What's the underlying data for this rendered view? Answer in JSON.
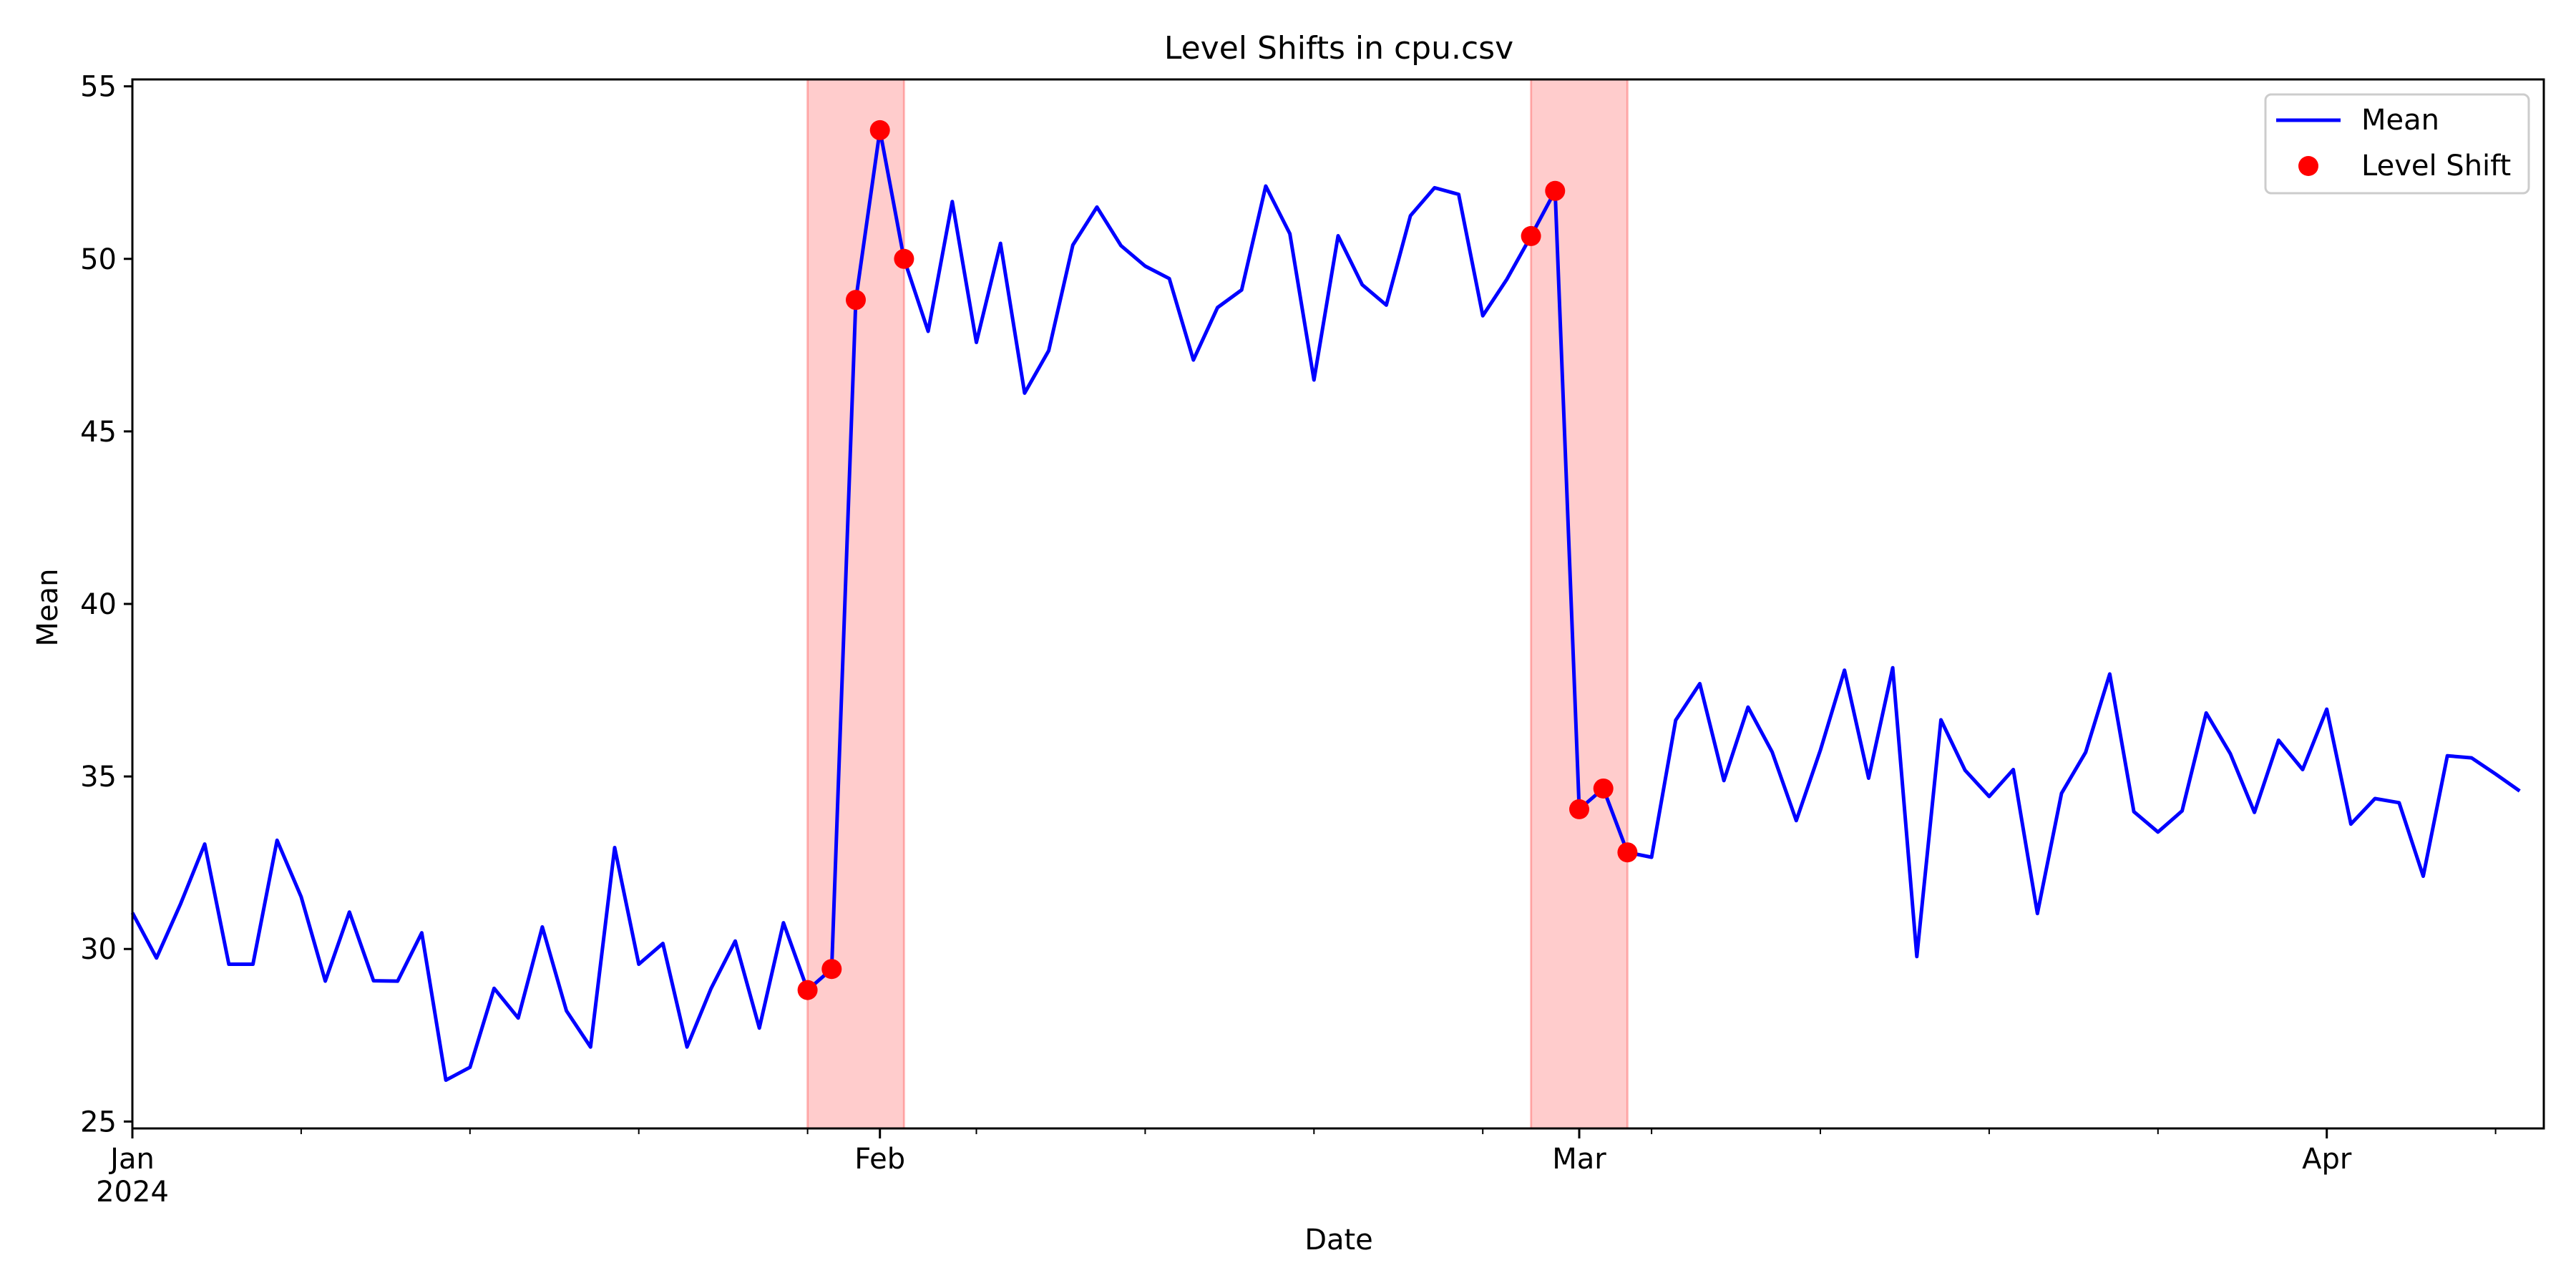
{
  "chart_data": {
    "type": "line",
    "title": "Level Shifts in cpu.csv",
    "xlabel": "Date",
    "ylabel": "Mean",
    "ylim": [
      24.8,
      55.2
    ],
    "yticks": [
      25,
      30,
      35,
      40,
      45,
      50,
      55
    ],
    "x_start": "2024-01-01",
    "x_end": "2024-04-10",
    "xlim": [
      "2024-01-01",
      "2024-04-10"
    ],
    "xticks": [
      {
        "date": "2024-01-01",
        "label": "Jan",
        "sublabel": "2024"
      },
      {
        "date": "2024-02-01",
        "label": "Feb",
        "sublabel": ""
      },
      {
        "date": "2024-03-01",
        "label": "Mar",
        "sublabel": ""
      },
      {
        "date": "2024-04-01",
        "label": "Apr",
        "sublabel": ""
      }
    ],
    "grid": false,
    "legend_position": "top-right",
    "shaded_spans": [
      {
        "start": "2024-01-29",
        "end": "2024-02-02",
        "color": "#ff0000"
      },
      {
        "start": "2024-02-28",
        "end": "2024-03-03",
        "color": "#ff0000"
      }
    ],
    "series": [
      {
        "name": "Mean",
        "kind": "line",
        "color": "#0000ff",
        "values": [
          31.05,
          29.74,
          31.31,
          33.04,
          29.56,
          29.56,
          33.15,
          31.51,
          29.07,
          31.07,
          29.08,
          29.07,
          30.47,
          26.2,
          26.57,
          28.86,
          28.0,
          30.64,
          28.21,
          27.16,
          32.94,
          29.56,
          30.16,
          27.16,
          28.86,
          30.23,
          27.71,
          30.76,
          28.81,
          29.42,
          48.81,
          53.73,
          50.0,
          47.9,
          51.66,
          47.58,
          50.45,
          46.11,
          47.34,
          50.4,
          51.5,
          50.38,
          49.79,
          49.43,
          47.07,
          48.59,
          49.1,
          52.11,
          50.73,
          46.49,
          50.67,
          49.25,
          48.66,
          51.25,
          52.06,
          51.87,
          48.35,
          49.41,
          50.66,
          51.97,
          34.05,
          34.65,
          32.8,
          32.66,
          36.63,
          37.69,
          34.88,
          37.01,
          35.71,
          33.72,
          35.76,
          38.08,
          34.95,
          38.15,
          29.78,
          36.64,
          35.18,
          34.42,
          35.2,
          31.03,
          34.51,
          35.7,
          37.97,
          33.98,
          33.39,
          34.0,
          36.84,
          35.66,
          33.96,
          36.05,
          35.2,
          36.95,
          33.62,
          34.36,
          34.24,
          32.11,
          35.6,
          35.54,
          35.07,
          34.58
        ]
      },
      {
        "name": "Level Shift",
        "kind": "marker",
        "color": "#ff0000",
        "points": [
          {
            "date": "2024-01-29",
            "value": 28.81
          },
          {
            "date": "2024-01-30",
            "value": 29.42
          },
          {
            "date": "2024-01-31",
            "value": 48.81
          },
          {
            "date": "2024-02-01",
            "value": 53.73
          },
          {
            "date": "2024-02-02",
            "value": 50.0
          },
          {
            "date": "2024-02-28",
            "value": 50.66
          },
          {
            "date": "2024-02-29",
            "value": 51.97
          },
          {
            "date": "2024-03-01",
            "value": 34.05
          },
          {
            "date": "2024-03-02",
            "value": 34.65
          },
          {
            "date": "2024-03-03",
            "value": 32.8
          }
        ]
      }
    ]
  }
}
